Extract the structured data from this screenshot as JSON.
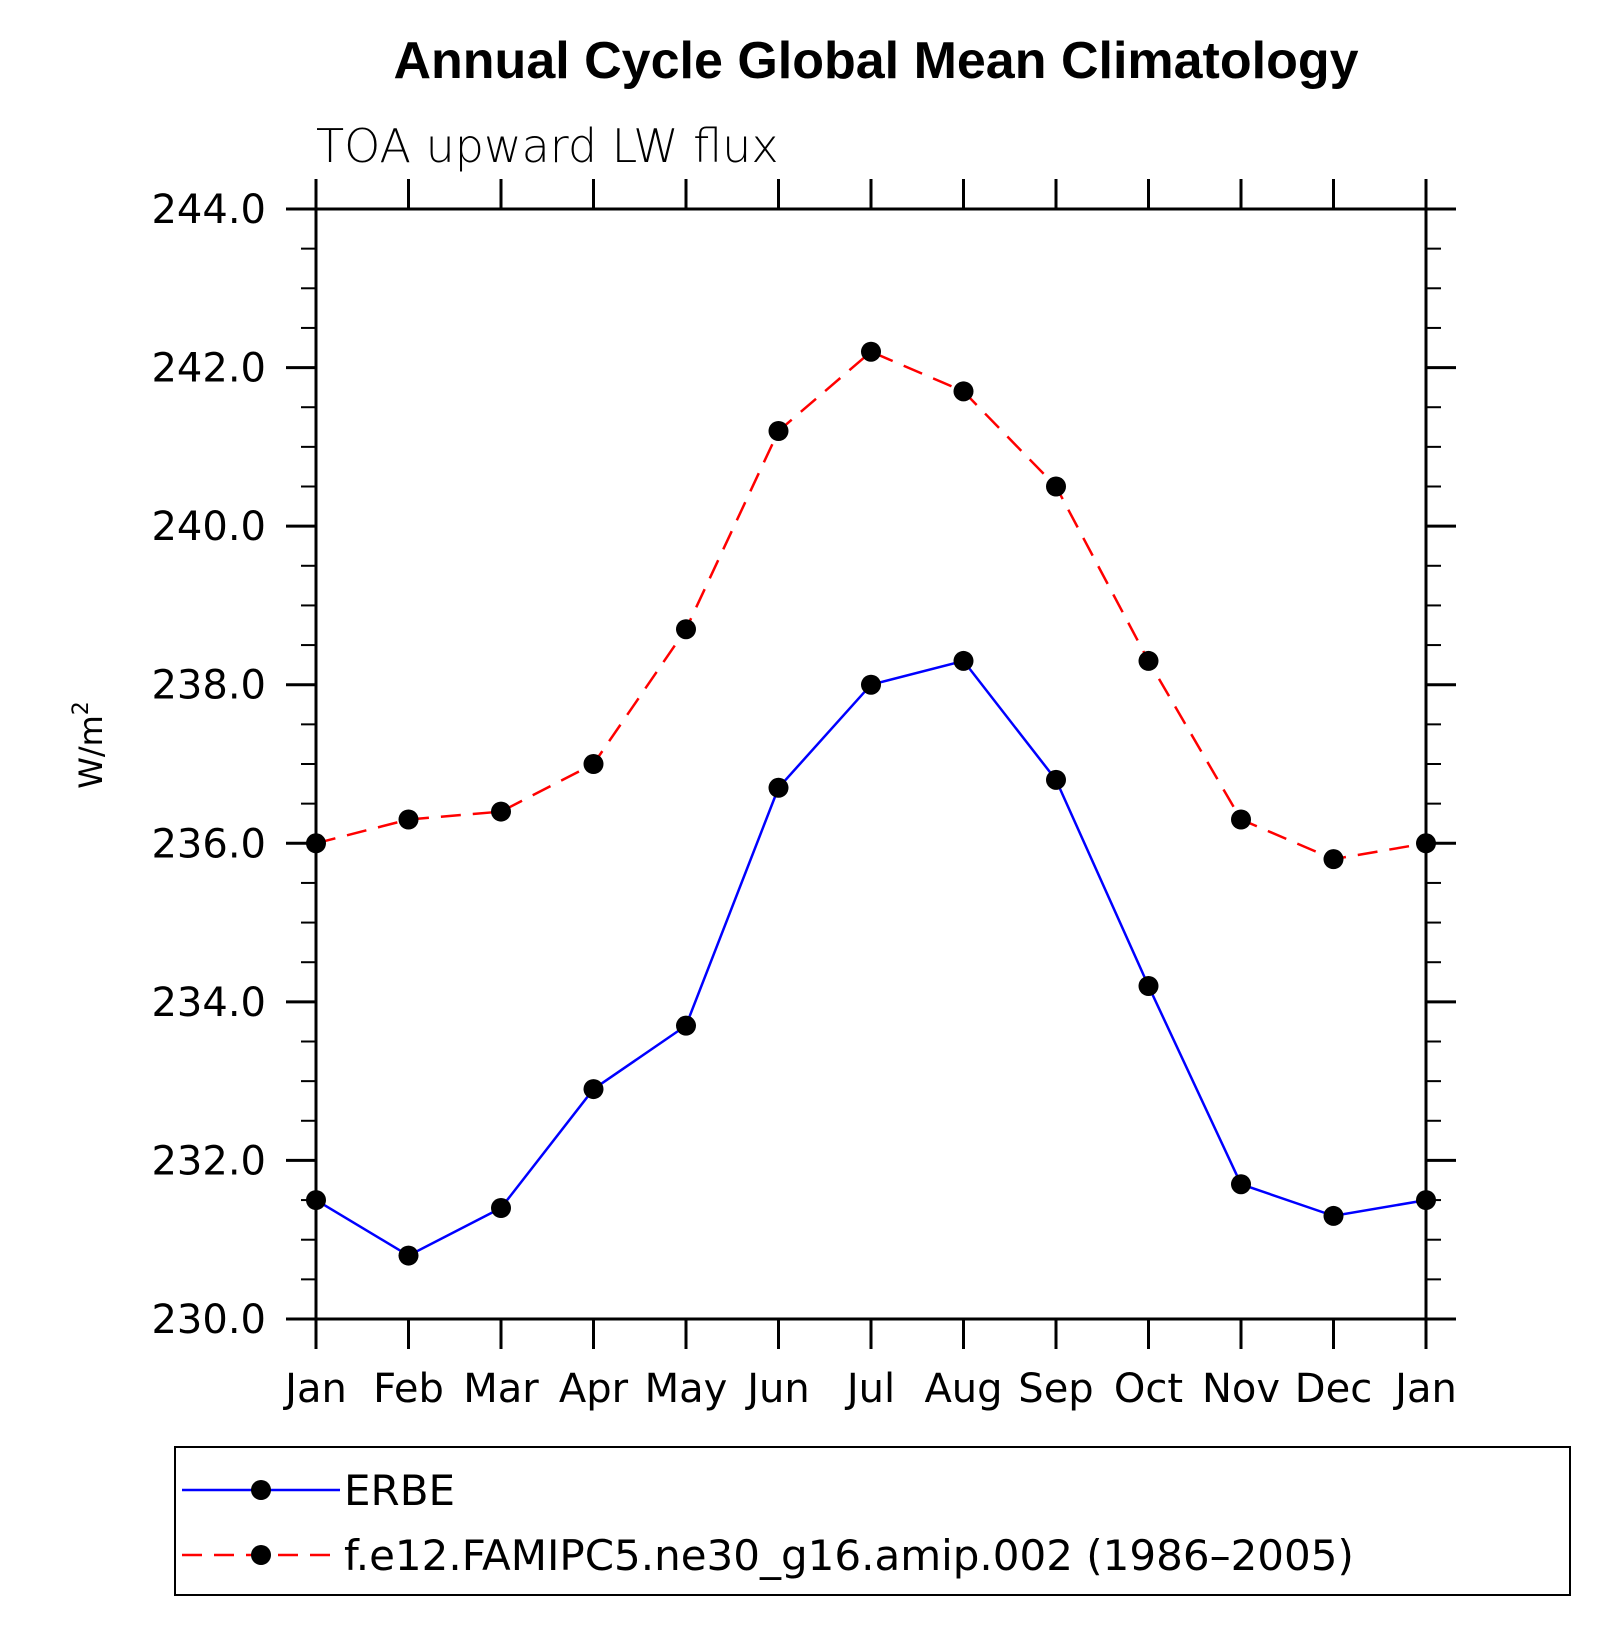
{
  "chart_data": {
    "type": "line",
    "title": "Annual Cycle Global Mean Climatology",
    "subtitle": "TOA upward LW flux",
    "xlabel": "",
    "ylabel": "W/m",
    "ylabel_superscript": "2",
    "categories": [
      "Jan",
      "Feb",
      "Mar",
      "Apr",
      "May",
      "Jun",
      "Jul",
      "Aug",
      "Sep",
      "Oct",
      "Nov",
      "Dec",
      "Jan"
    ],
    "ylim": [
      230.0,
      244.0
    ],
    "yticks": [
      "230.0",
      "232.0",
      "234.0",
      "236.0",
      "238.0",
      "240.0",
      "242.0",
      "244.0"
    ],
    "grid": false,
    "legend_position": "bottom",
    "series": [
      {
        "name": "ERBE",
        "color": "#0000ff",
        "dash": "solid",
        "marker": "filled-circle",
        "values": [
          231.5,
          230.8,
          231.4,
          232.9,
          233.7,
          236.7,
          238.0,
          238.3,
          236.8,
          234.2,
          231.7,
          231.3,
          231.5
        ]
      },
      {
        "name": "f.e12.FAMIPC5.ne30_g16.amip.002 (1986–2005)",
        "color": "#ff0000",
        "dash": "dashed",
        "marker": "filled-circle",
        "values": [
          236.0,
          236.3,
          236.4,
          237.0,
          238.7,
          241.2,
          242.2,
          241.7,
          240.5,
          238.3,
          236.3,
          235.8,
          236.0
        ]
      }
    ]
  }
}
